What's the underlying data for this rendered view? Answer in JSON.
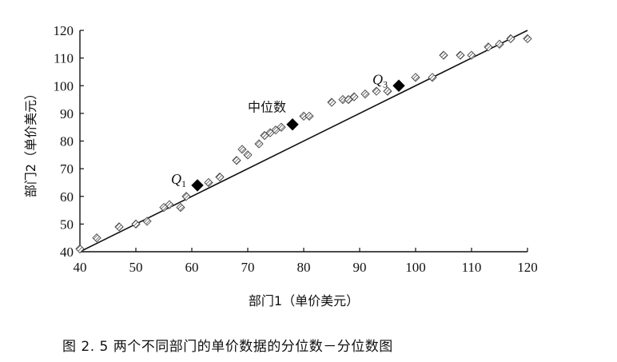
{
  "chart_data": {
    "type": "scatter",
    "title": "",
    "xlabel": "部门1（单价美元）",
    "ylabel": "部门2（单价美元）",
    "xlim": [
      40,
      120
    ],
    "ylim": [
      40,
      120
    ],
    "xticks": [
      40,
      50,
      60,
      70,
      80,
      90,
      100,
      110,
      120
    ],
    "yticks": [
      40,
      50,
      60,
      70,
      80,
      90,
      100,
      110,
      120
    ],
    "grid": false,
    "series": [
      {
        "marker": "hatched-diamond",
        "points": [
          [
            40,
            41
          ],
          [
            43,
            45
          ],
          [
            47,
            49
          ],
          [
            50,
            50
          ],
          [
            52,
            51
          ],
          [
            55,
            56
          ],
          [
            56,
            57
          ],
          [
            58,
            56
          ],
          [
            59,
            60
          ],
          [
            63,
            65
          ],
          [
            65,
            67
          ],
          [
            68,
            73
          ],
          [
            69,
            77
          ],
          [
            70,
            75
          ],
          [
            72,
            79
          ],
          [
            73,
            82
          ],
          [
            74,
            83
          ],
          [
            75,
            84
          ],
          [
            76,
            85
          ],
          [
            80,
            89
          ],
          [
            81,
            89
          ],
          [
            85,
            94
          ],
          [
            87,
            95
          ],
          [
            88,
            95
          ],
          [
            89,
            96
          ],
          [
            91,
            97
          ],
          [
            93,
            98
          ],
          [
            95,
            98
          ],
          [
            100,
            103
          ],
          [
            103,
            103
          ],
          [
            105,
            111
          ],
          [
            108,
            111
          ],
          [
            110,
            111
          ],
          [
            113,
            114
          ],
          [
            115,
            115
          ],
          [
            117,
            117
          ],
          [
            120,
            117
          ]
        ]
      }
    ],
    "quantiles": [
      {
        "label": "Q",
        "sub": "1",
        "x": 61,
        "y": 64
      },
      {
        "label": "中位数",
        "sub": "",
        "x": 78,
        "y": 86
      },
      {
        "label": "Q",
        "sub": "3",
        "x": 97,
        "y": 100
      }
    ],
    "reference_line": {
      "x": [
        40,
        120
      ],
      "y": [
        40,
        120
      ]
    },
    "caption": "图 2. 5    两个不同部门的单价数据的分位数－分位数图"
  }
}
